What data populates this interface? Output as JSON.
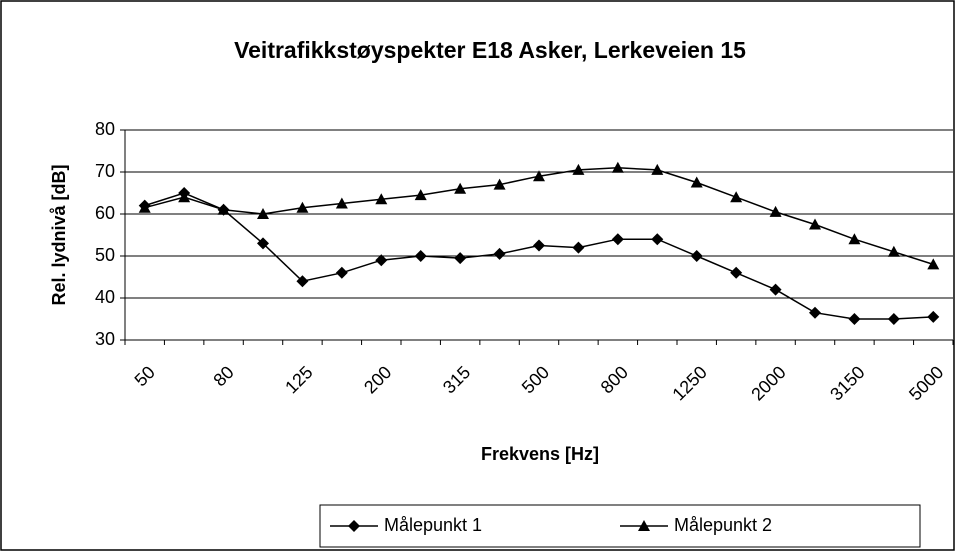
{
  "chart_data": {
    "type": "line",
    "title": "Veitrafikkstøyspekter E18 Asker, Lerkeveien 15",
    "x_label": "Frekvens [Hz]",
    "y_label": "Rel. lydnivå [dB]",
    "categories": [
      "50",
      null,
      "80",
      null,
      "125",
      null,
      "200",
      null,
      "315",
      null,
      "500",
      null,
      "800",
      null,
      "1250",
      null,
      "2000",
      null,
      "3150",
      null,
      "5000"
    ],
    "series": [
      {
        "name": "Målepunkt 1",
        "color": "#000000",
        "marker": "diamond",
        "values": [
          62,
          65,
          61,
          53,
          44,
          46,
          49,
          50,
          49.5,
          50.5,
          52.5,
          52,
          54,
          54,
          50,
          46,
          42,
          36.5,
          35,
          35,
          35.5
        ]
      },
      {
        "name": "Målepunkt 2",
        "color": "#000000",
        "marker": "triangle",
        "values": [
          61.5,
          64,
          61,
          60,
          61.5,
          62.5,
          63.5,
          64.5,
          66,
          67,
          69,
          70.5,
          71,
          70.5,
          67.5,
          64,
          60.5,
          57.5,
          54,
          51,
          48
        ]
      }
    ],
    "ylim": [
      30,
      80
    ],
    "yticks": [
      30,
      40,
      50,
      60,
      70,
      80
    ],
    "grid": true,
    "legend": "bottom"
  }
}
